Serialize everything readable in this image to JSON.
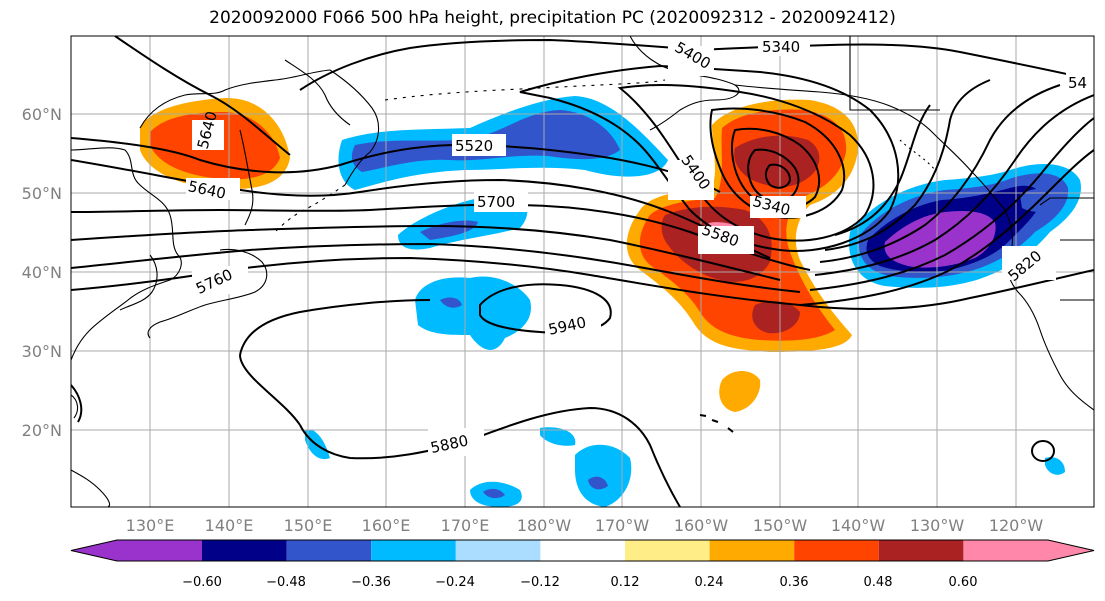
{
  "title": "2020092000 F066 500 hPa height, precipitation PC (2020092312 - 2020092412)",
  "map": {
    "lat_labels": [
      "60°N",
      "50°N",
      "40°N",
      "30°N",
      "20°N"
    ],
    "lon_labels": [
      "130°E",
      "140°E",
      "150°E",
      "160°E",
      "170°E",
      "180°W",
      "170°W",
      "160°W",
      "150°W",
      "140°W",
      "130°W",
      "120°W"
    ],
    "contour_labels": [
      "5340",
      "5400",
      "54",
      "5520",
      "5640",
      "5700",
      "5400",
      "5340",
      "5580",
      "5760",
      "5820",
      "5940",
      "5880",
      "5640"
    ]
  },
  "colorbar": {
    "colors": [
      "#9933cc",
      "#000088",
      "#3355cc",
      "#00bbff",
      "#aaddff",
      "#ffffff",
      "#ffee88",
      "#ffaa00",
      "#ff4400",
      "#aa2222",
      "#ff88aa"
    ],
    "tick_labels": [
      "−0.60",
      "−0.48",
      "−0.36",
      "−0.24",
      "−0.12",
      "0.12",
      "0.24",
      "0.36",
      "0.48",
      "0.60"
    ]
  }
}
